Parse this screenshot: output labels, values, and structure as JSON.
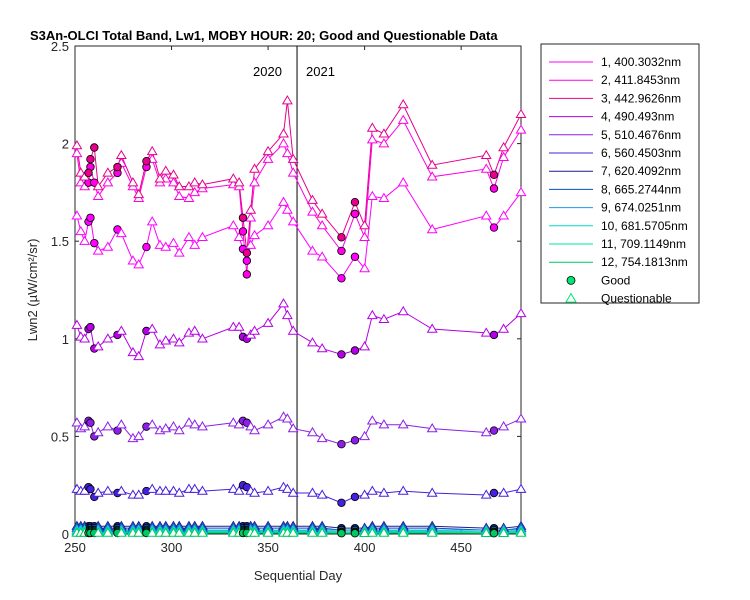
{
  "chart_data": {
    "type": "line",
    "title": "S3An-OLCI Total Band, Lw1, MOBY HOUR: 20;  Good and Questionable Data",
    "xlabel": "Sequential Day",
    "ylabel": "Lwn2 (µW/cm²/sr)",
    "xlim": [
      250,
      481
    ],
    "ylim": [
      0,
      2.5
    ],
    "xticks": [
      "250",
      "300",
      "350",
      "400",
      "450"
    ],
    "yticks": [
      "0",
      "0.5",
      "1",
      "1.5",
      "2",
      "2.5"
    ],
    "grid": false,
    "legend_position": "outside-right",
    "divider_x": 365,
    "year_labels": [
      "2020",
      "2021"
    ],
    "marker_legend": {
      "good": "Good",
      "questionable": "Questionable"
    },
    "x": [
      251,
      253,
      255,
      257,
      258,
      260,
      262,
      267,
      272,
      274,
      280,
      283,
      287,
      290,
      294,
      297,
      301,
      304,
      309,
      312,
      316,
      332,
      335,
      337,
      339,
      341,
      343,
      350,
      358,
      360,
      363,
      373,
      378,
      388,
      395,
      400,
      404,
      410,
      420,
      435,
      463,
      467,
      472,
      481
    ],
    "series": [
      {
        "name": "1, 400.3032nm",
        "color": "#ff00ff",
        "values": [
          1.63,
          1.55,
          1.5,
          1.6,
          1.62,
          1.49,
          1.45,
          1.47,
          1.56,
          1.54,
          1.4,
          1.38,
          1.47,
          1.6,
          1.48,
          1.47,
          1.49,
          1.44,
          1.52,
          1.48,
          1.52,
          1.58,
          1.52,
          1.46,
          1.4,
          1.48,
          1.53,
          1.58,
          1.7,
          1.66,
          1.6,
          1.45,
          1.42,
          1.31,
          1.42,
          1.36,
          1.73,
          1.72,
          1.8,
          1.56,
          1.63,
          1.57,
          1.63,
          1.75
        ],
        "flags": [
          "Q",
          "Q",
          "Q",
          "G",
          "G",
          "G",
          "Q",
          "Q",
          "G",
          "Q",
          "Q",
          "Q",
          "G",
          "Q",
          "Q",
          "Q",
          "Q",
          "Q",
          "Q",
          "Q",
          "Q",
          "Q",
          "Q",
          "G",
          "G",
          "Q",
          "Q",
          "Q",
          "Q",
          "Q",
          "Q",
          "Q",
          "Q",
          "G",
          "G",
          "Q",
          "Q",
          "Q",
          "Q",
          "Q",
          "Q",
          "G",
          "Q",
          "Q"
        ]
      },
      {
        "name": "2, 411.8453nm",
        "color": "#ff00e6",
        "values": [
          1.95,
          1.8,
          1.78,
          1.8,
          1.88,
          1.8,
          1.73,
          1.8,
          1.85,
          1.9,
          1.78,
          1.72,
          1.88,
          1.92,
          1.8,
          1.82,
          1.8,
          1.73,
          1.72,
          1.75,
          1.77,
          1.79,
          1.78,
          1.55,
          1.33,
          1.62,
          1.8,
          1.92,
          2.0,
          1.95,
          1.85,
          1.65,
          1.58,
          1.45,
          1.64,
          1.52,
          2.02,
          2.0,
          2.12,
          1.83,
          1.87,
          1.77,
          1.93,
          2.07
        ],
        "flags": [
          "Q",
          "Q",
          "Q",
          "G",
          "G",
          "G",
          "Q",
          "Q",
          "G",
          "Q",
          "Q",
          "Q",
          "G",
          "Q",
          "Q",
          "Q",
          "Q",
          "Q",
          "Q",
          "Q",
          "Q",
          "Q",
          "Q",
          "G",
          "G",
          "Q",
          "Q",
          "Q",
          "Q",
          "Q",
          "Q",
          "Q",
          "Q",
          "G",
          "G",
          "Q",
          "Q",
          "Q",
          "Q",
          "Q",
          "Q",
          "G",
          "Q",
          "Q"
        ]
      },
      {
        "name": "3, 442.9626nm",
        "color": "#e6008c",
        "values": [
          1.99,
          1.85,
          1.83,
          1.85,
          1.92,
          1.98,
          1.78,
          1.85,
          1.88,
          1.94,
          1.8,
          1.74,
          1.91,
          1.96,
          1.82,
          1.86,
          1.84,
          1.78,
          1.78,
          1.8,
          1.79,
          1.82,
          1.8,
          1.62,
          1.44,
          1.66,
          1.87,
          1.96,
          2.05,
          2.22,
          1.92,
          1.71,
          1.64,
          1.52,
          1.7,
          1.58,
          2.08,
          2.05,
          2.2,
          1.89,
          1.94,
          1.84,
          1.98,
          2.15
        ],
        "flags": [
          "Q",
          "Q",
          "Q",
          "G",
          "G",
          "G",
          "Q",
          "Q",
          "G",
          "Q",
          "Q",
          "Q",
          "G",
          "Q",
          "Q",
          "Q",
          "Q",
          "Q",
          "Q",
          "Q",
          "Q",
          "Q",
          "Q",
          "G",
          "G",
          "Q",
          "Q",
          "Q",
          "Q",
          "Q",
          "Q",
          "Q",
          "Q",
          "G",
          "G",
          "Q",
          "Q",
          "Q",
          "Q",
          "Q",
          "Q",
          "G",
          "Q",
          "Q"
        ]
      },
      {
        "name": "4,  490.493nm",
        "color": "#b400e6",
        "values": [
          1.07,
          1.01,
          1.0,
          1.05,
          1.06,
          0.95,
          0.96,
          1.0,
          1.02,
          1.04,
          0.93,
          0.91,
          1.04,
          1.05,
          0.97,
          0.99,
          1.0,
          0.98,
          1.03,
          1.04,
          1.0,
          1.06,
          1.06,
          1.01,
          1.0,
          1.02,
          1.04,
          1.08,
          1.18,
          1.12,
          1.04,
          0.98,
          0.95,
          0.92,
          0.94,
          0.96,
          1.12,
          1.1,
          1.14,
          1.05,
          1.03,
          1.02,
          1.05,
          1.13
        ],
        "flags": [
          "Q",
          "Q",
          "Q",
          "G",
          "G",
          "G",
          "Q",
          "Q",
          "G",
          "Q",
          "Q",
          "Q",
          "G",
          "Q",
          "Q",
          "Q",
          "Q",
          "Q",
          "Q",
          "Q",
          "Q",
          "Q",
          "Q",
          "G",
          "G",
          "Q",
          "Q",
          "Q",
          "Q",
          "Q",
          "Q",
          "Q",
          "Q",
          "G",
          "G",
          "Q",
          "Q",
          "Q",
          "Q",
          "Q",
          "Q",
          "G",
          "Q",
          "Q"
        ]
      },
      {
        "name": "5, 510.4676nm",
        "color": "#8c1ee6",
        "values": [
          0.57,
          0.54,
          0.55,
          0.58,
          0.57,
          0.5,
          0.52,
          0.55,
          0.53,
          0.56,
          0.49,
          0.5,
          0.55,
          0.56,
          0.53,
          0.54,
          0.55,
          0.53,
          0.57,
          0.56,
          0.55,
          0.57,
          0.56,
          0.58,
          0.57,
          0.55,
          0.53,
          0.56,
          0.6,
          0.59,
          0.54,
          0.52,
          0.49,
          0.46,
          0.48,
          0.5,
          0.58,
          0.56,
          0.56,
          0.54,
          0.52,
          0.53,
          0.55,
          0.59
        ],
        "flags": [
          "Q",
          "Q",
          "Q",
          "G",
          "G",
          "G",
          "Q",
          "Q",
          "G",
          "Q",
          "Q",
          "Q",
          "G",
          "Q",
          "Q",
          "Q",
          "Q",
          "Q",
          "Q",
          "Q",
          "Q",
          "Q",
          "Q",
          "G",
          "G",
          "Q",
          "Q",
          "Q",
          "Q",
          "Q",
          "Q",
          "Q",
          "Q",
          "G",
          "G",
          "Q",
          "Q",
          "Q",
          "Q",
          "Q",
          "Q",
          "G",
          "Q",
          "Q"
        ]
      },
      {
        "name": "6, 560.4503nm",
        "color": "#4620dc",
        "values": [
          0.23,
          0.22,
          0.22,
          0.24,
          0.23,
          0.19,
          0.21,
          0.22,
          0.21,
          0.22,
          0.2,
          0.2,
          0.22,
          0.23,
          0.22,
          0.22,
          0.22,
          0.21,
          0.23,
          0.23,
          0.22,
          0.23,
          0.22,
          0.25,
          0.24,
          0.22,
          0.21,
          0.22,
          0.24,
          0.23,
          0.21,
          0.21,
          0.2,
          0.16,
          0.19,
          0.2,
          0.22,
          0.21,
          0.22,
          0.21,
          0.2,
          0.21,
          0.21,
          0.23
        ],
        "flags": [
          "Q",
          "Q",
          "Q",
          "G",
          "G",
          "G",
          "Q",
          "Q",
          "G",
          "Q",
          "Q",
          "Q",
          "G",
          "Q",
          "Q",
          "Q",
          "Q",
          "Q",
          "Q",
          "Q",
          "Q",
          "Q",
          "Q",
          "G",
          "G",
          "Q",
          "Q",
          "Q",
          "Q",
          "Q",
          "Q",
          "Q",
          "Q",
          "G",
          "G",
          "Q",
          "Q",
          "Q",
          "Q",
          "Q",
          "Q",
          "G",
          "Q",
          "Q"
        ]
      },
      {
        "name": "7, 620.4092nm",
        "color": "#1e1e8c",
        "values": [
          0.04,
          0.04,
          0.04,
          0.04,
          0.04,
          0.04,
          0.04,
          0.04,
          0.04,
          0.04,
          0.04,
          0.04,
          0.04,
          0.04,
          0.04,
          0.04,
          0.04,
          0.04,
          0.04,
          0.04,
          0.04,
          0.04,
          0.04,
          0.04,
          0.04,
          0.04,
          0.04,
          0.04,
          0.04,
          0.04,
          0.04,
          0.04,
          0.04,
          0.03,
          0.03,
          0.03,
          0.04,
          0.04,
          0.04,
          0.04,
          0.03,
          0.03,
          0.03,
          0.04
        ],
        "flags": [
          "Q",
          "Q",
          "Q",
          "G",
          "G",
          "G",
          "Q",
          "Q",
          "G",
          "Q",
          "Q",
          "Q",
          "G",
          "Q",
          "Q",
          "Q",
          "Q",
          "Q",
          "Q",
          "Q",
          "Q",
          "Q",
          "Q",
          "G",
          "G",
          "Q",
          "Q",
          "Q",
          "Q",
          "Q",
          "Q",
          "Q",
          "Q",
          "G",
          "G",
          "Q",
          "Q",
          "Q",
          "Q",
          "Q",
          "Q",
          "G",
          "Q",
          "Q"
        ]
      },
      {
        "name": "8, 665.2744nm",
        "color": "#0050c8",
        "values": [
          0.03,
          0.03,
          0.03,
          0.03,
          0.03,
          0.03,
          0.03,
          0.03,
          0.03,
          0.03,
          0.03,
          0.03,
          0.03,
          0.03,
          0.03,
          0.03,
          0.03,
          0.03,
          0.03,
          0.03,
          0.03,
          0.03,
          0.03,
          0.03,
          0.03,
          0.03,
          0.03,
          0.03,
          0.03,
          0.03,
          0.03,
          0.03,
          0.03,
          0.02,
          0.02,
          0.02,
          0.03,
          0.03,
          0.03,
          0.03,
          0.02,
          0.02,
          0.02,
          0.03
        ],
        "flags": [
          "Q",
          "Q",
          "Q",
          "G",
          "G",
          "G",
          "Q",
          "Q",
          "G",
          "Q",
          "Q",
          "Q",
          "G",
          "Q",
          "Q",
          "Q",
          "Q",
          "Q",
          "Q",
          "Q",
          "Q",
          "Q",
          "Q",
          "G",
          "G",
          "Q",
          "Q",
          "Q",
          "Q",
          "Q",
          "Q",
          "Q",
          "Q",
          "G",
          "G",
          "Q",
          "Q",
          "Q",
          "Q",
          "Q",
          "Q",
          "G",
          "Q",
          "Q"
        ]
      },
      {
        "name": "9, 674.0251nm",
        "color": "#1e96e6",
        "values": [
          0.02,
          0.02,
          0.02,
          0.02,
          0.02,
          0.02,
          0.02,
          0.02,
          0.02,
          0.02,
          0.02,
          0.02,
          0.02,
          0.02,
          0.02,
          0.02,
          0.02,
          0.02,
          0.02,
          0.02,
          0.02,
          0.02,
          0.02,
          0.02,
          0.02,
          0.02,
          0.02,
          0.02,
          0.02,
          0.02,
          0.02,
          0.02,
          0.02,
          0.02,
          0.02,
          0.02,
          0.02,
          0.02,
          0.02,
          0.02,
          0.02,
          0.02,
          0.02,
          0.02
        ],
        "flags": [
          "Q",
          "Q",
          "Q",
          "G",
          "G",
          "G",
          "Q",
          "Q",
          "G",
          "Q",
          "Q",
          "Q",
          "G",
          "Q",
          "Q",
          "Q",
          "Q",
          "Q",
          "Q",
          "Q",
          "Q",
          "Q",
          "Q",
          "G",
          "G",
          "Q",
          "Q",
          "Q",
          "Q",
          "Q",
          "Q",
          "Q",
          "Q",
          "G",
          "G",
          "Q",
          "Q",
          "Q",
          "Q",
          "Q",
          "Q",
          "G",
          "Q",
          "Q"
        ]
      },
      {
        "name": "10, 681.5705nm",
        "color": "#00dcc8",
        "values": [
          0.015,
          0.015,
          0.015,
          0.015,
          0.015,
          0.015,
          0.015,
          0.015,
          0.015,
          0.015,
          0.015,
          0.015,
          0.015,
          0.015,
          0.015,
          0.015,
          0.015,
          0.015,
          0.015,
          0.015,
          0.015,
          0.015,
          0.015,
          0.015,
          0.015,
          0.015,
          0.015,
          0.015,
          0.015,
          0.015,
          0.015,
          0.015,
          0.015,
          0.012,
          0.012,
          0.012,
          0.015,
          0.015,
          0.015,
          0.015,
          0.012,
          0.012,
          0.012,
          0.015
        ],
        "flags": [
          "Q",
          "Q",
          "Q",
          "G",
          "G",
          "G",
          "Q",
          "Q",
          "G",
          "Q",
          "Q",
          "Q",
          "G",
          "Q",
          "Q",
          "Q",
          "Q",
          "Q",
          "Q",
          "Q",
          "Q",
          "Q",
          "Q",
          "G",
          "G",
          "Q",
          "Q",
          "Q",
          "Q",
          "Q",
          "Q",
          "Q",
          "Q",
          "G",
          "G",
          "Q",
          "Q",
          "Q",
          "Q",
          "Q",
          "Q",
          "G",
          "Q",
          "Q"
        ]
      },
      {
        "name": "11, 709.1149nm",
        "color": "#00e696",
        "values": [
          0.01,
          0.01,
          0.01,
          0.01,
          0.01,
          0.01,
          0.01,
          0.01,
          0.01,
          0.01,
          0.01,
          0.01,
          0.01,
          0.01,
          0.01,
          0.01,
          0.01,
          0.01,
          0.01,
          0.01,
          0.01,
          0.01,
          0.01,
          0.01,
          0.01,
          0.01,
          0.01,
          0.01,
          0.01,
          0.01,
          0.01,
          0.01,
          0.01,
          0.008,
          0.008,
          0.008,
          0.01,
          0.01,
          0.01,
          0.01,
          0.008,
          0.008,
          0.008,
          0.01
        ],
        "flags": [
          "Q",
          "Q",
          "Q",
          "G",
          "G",
          "G",
          "Q",
          "Q",
          "G",
          "Q",
          "Q",
          "Q",
          "G",
          "Q",
          "Q",
          "Q",
          "Q",
          "Q",
          "Q",
          "Q",
          "Q",
          "Q",
          "Q",
          "G",
          "G",
          "Q",
          "Q",
          "Q",
          "Q",
          "Q",
          "Q",
          "Q",
          "Q",
          "G",
          "G",
          "Q",
          "Q",
          "Q",
          "Q",
          "Q",
          "Q",
          "G",
          "Q",
          "Q"
        ]
      },
      {
        "name": "12, 754.1813nm",
        "color": "#00c864",
        "values": [
          0.005,
          0.005,
          0.005,
          0.005,
          0.005,
          0.005,
          0.005,
          0.005,
          0.005,
          0.005,
          0.005,
          0.005,
          0.005,
          0.005,
          0.005,
          0.005,
          0.005,
          0.005,
          0.005,
          0.005,
          0.005,
          0.005,
          0.005,
          0.005,
          0.005,
          0.005,
          0.005,
          0.005,
          0.005,
          0.005,
          0.005,
          0.005,
          0.005,
          0.004,
          0.004,
          0.004,
          0.005,
          0.005,
          0.005,
          0.005,
          0.004,
          0.004,
          0.004,
          0.005
        ],
        "flags": [
          "Q",
          "Q",
          "Q",
          "G",
          "G",
          "G",
          "Q",
          "Q",
          "G",
          "Q",
          "Q",
          "Q",
          "G",
          "Q",
          "Q",
          "Q",
          "Q",
          "Q",
          "Q",
          "Q",
          "Q",
          "Q",
          "Q",
          "G",
          "G",
          "Q",
          "Q",
          "Q",
          "Q",
          "Q",
          "Q",
          "Q",
          "Q",
          "G",
          "G",
          "Q",
          "Q",
          "Q",
          "Q",
          "Q",
          "Q",
          "G",
          "Q",
          "Q"
        ]
      }
    ],
    "colors": {
      "good_marker": "#00e676",
      "questionable_marker": "#00e676"
    }
  }
}
